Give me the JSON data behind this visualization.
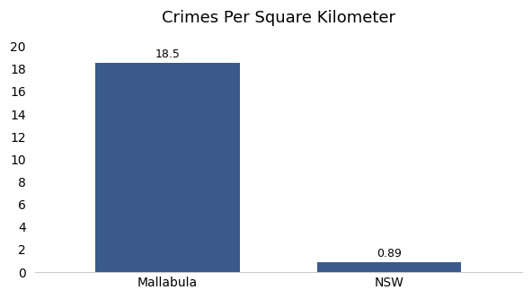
{
  "categories": [
    "Mallabula",
    "NSW"
  ],
  "values": [
    18.5,
    0.89
  ],
  "bar_color": "#3a5a8c",
  "title": "Crimes Per Square Kilometer",
  "title_fontsize": 13,
  "label_fontsize": 10,
  "bar_label_fontsize": 9,
  "ylim": [
    0,
    21
  ],
  "yticks": [
    0,
    2,
    4,
    6,
    8,
    10,
    12,
    14,
    16,
    18,
    20
  ],
  "background_color": "#ffffff",
  "bar_width": 0.65,
  "figwidth": 5.92,
  "figheight": 3.33,
  "dpi": 100
}
